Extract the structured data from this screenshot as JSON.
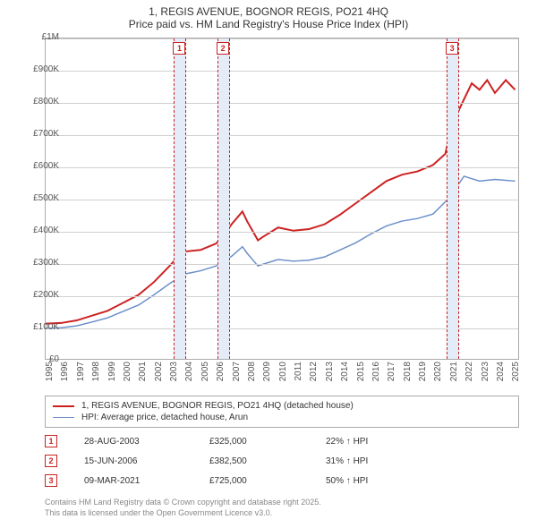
{
  "title": {
    "line1": "1, REGIS AVENUE, BOGNOR REGIS, PO21 4HQ",
    "line2": "Price paid vs. HM Land Registry's House Price Index (HPI)"
  },
  "chart": {
    "type": "line",
    "background_color": "#ffffff",
    "grid_color": "#d0d0d0",
    "border_color": "#aaaaaa",
    "ylim": [
      0,
      1000000
    ],
    "ytick_step": 100000,
    "yticks": [
      "£0",
      "£100K",
      "£200K",
      "£300K",
      "£400K",
      "£500K",
      "£600K",
      "£700K",
      "£800K",
      "£900K",
      "£1M"
    ],
    "xlim": [
      1995,
      2025.5
    ],
    "xticks": [
      "1995",
      "1996",
      "1997",
      "1998",
      "1999",
      "2000",
      "2001",
      "2002",
      "2003",
      "2004",
      "2005",
      "2006",
      "2007",
      "2008",
      "2009",
      "2010",
      "2011",
      "2012",
      "2013",
      "2014",
      "2015",
      "2016",
      "2017",
      "2018",
      "2019",
      "2020",
      "2021",
      "2022",
      "2023",
      "2024",
      "2025"
    ],
    "series": [
      {
        "name": "1, REGIS AVENUE, BOGNOR REGIS, PO21 4HQ (detached house)",
        "color": "#cc2222",
        "line_width": 2,
        "data": [
          [
            1995,
            110000
          ],
          [
            1996,
            112000
          ],
          [
            1997,
            120000
          ],
          [
            1998,
            135000
          ],
          [
            1999,
            150000
          ],
          [
            2000,
            175000
          ],
          [
            2001,
            200000
          ],
          [
            2002,
            240000
          ],
          [
            2003,
            290000
          ],
          [
            2003.66,
            325000
          ],
          [
            2004,
            335000
          ],
          [
            2005,
            340000
          ],
          [
            2006,
            360000
          ],
          [
            2006.46,
            382500
          ],
          [
            2007,
            420000
          ],
          [
            2007.7,
            460000
          ],
          [
            2008,
            430000
          ],
          [
            2008.7,
            370000
          ],
          [
            2009,
            380000
          ],
          [
            2010,
            410000
          ],
          [
            2011,
            400000
          ],
          [
            2012,
            405000
          ],
          [
            2013,
            420000
          ],
          [
            2014,
            450000
          ],
          [
            2015,
            485000
          ],
          [
            2016,
            520000
          ],
          [
            2017,
            555000
          ],
          [
            2018,
            575000
          ],
          [
            2019,
            585000
          ],
          [
            2020,
            605000
          ],
          [
            2020.8,
            640000
          ],
          [
            2021.19,
            725000
          ],
          [
            2021.8,
            790000
          ],
          [
            2022.5,
            860000
          ],
          [
            2023,
            840000
          ],
          [
            2023.5,
            870000
          ],
          [
            2024,
            830000
          ],
          [
            2024.7,
            870000
          ],
          [
            2025.3,
            840000
          ]
        ]
      },
      {
        "name": "HPI: Average price, detached house, Arun",
        "color": "#6b8fc9",
        "line_width": 1.5,
        "data": [
          [
            1995,
            95000
          ],
          [
            1996,
            97000
          ],
          [
            1997,
            103000
          ],
          [
            1998,
            115000
          ],
          [
            1999,
            128000
          ],
          [
            2000,
            148000
          ],
          [
            2001,
            168000
          ],
          [
            2002,
            200000
          ],
          [
            2003,
            235000
          ],
          [
            2004,
            265000
          ],
          [
            2005,
            275000
          ],
          [
            2006,
            290000
          ],
          [
            2007,
            320000
          ],
          [
            2007.7,
            350000
          ],
          [
            2008,
            330000
          ],
          [
            2008.7,
            290000
          ],
          [
            2009,
            295000
          ],
          [
            2010,
            310000
          ],
          [
            2011,
            305000
          ],
          [
            2012,
            308000
          ],
          [
            2013,
            318000
          ],
          [
            2014,
            340000
          ],
          [
            2015,
            362000
          ],
          [
            2016,
            390000
          ],
          [
            2017,
            415000
          ],
          [
            2018,
            430000
          ],
          [
            2019,
            438000
          ],
          [
            2020,
            452000
          ],
          [
            2021,
            500000
          ],
          [
            2022,
            570000
          ],
          [
            2023,
            555000
          ],
          [
            2024,
            560000
          ],
          [
            2025.3,
            555000
          ]
        ]
      }
    ],
    "sale_markers": [
      {
        "num": "1",
        "year": 2003.66,
        "price": 325000
      },
      {
        "num": "2",
        "year": 2006.46,
        "price": 382500
      },
      {
        "num": "3",
        "year": 2021.19,
        "price": 725000
      }
    ],
    "band_color": "#e3ecf7",
    "band_dash_color": "#cc2222",
    "label_fontsize": 10,
    "title_fontsize": 12
  },
  "legend": {
    "items": [
      {
        "label": "1, REGIS AVENUE, BOGNOR REGIS, PO21 4HQ (detached house)",
        "color": "#cc2222",
        "width": 2
      },
      {
        "label": "HPI: Average price, detached house, Arun",
        "color": "#6b8fc9",
        "width": 1.5
      }
    ]
  },
  "sales": [
    {
      "num": "1",
      "date": "28-AUG-2003",
      "price": "£325,000",
      "delta": "22% ↑ HPI"
    },
    {
      "num": "2",
      "date": "15-JUN-2006",
      "price": "£382,500",
      "delta": "31% ↑ HPI"
    },
    {
      "num": "3",
      "date": "09-MAR-2021",
      "price": "£725,000",
      "delta": "50% ↑ HPI"
    }
  ],
  "footnote": {
    "line1": "Contains HM Land Registry data © Crown copyright and database right 2025.",
    "line2": "This data is licensed under the Open Government Licence v3.0."
  }
}
